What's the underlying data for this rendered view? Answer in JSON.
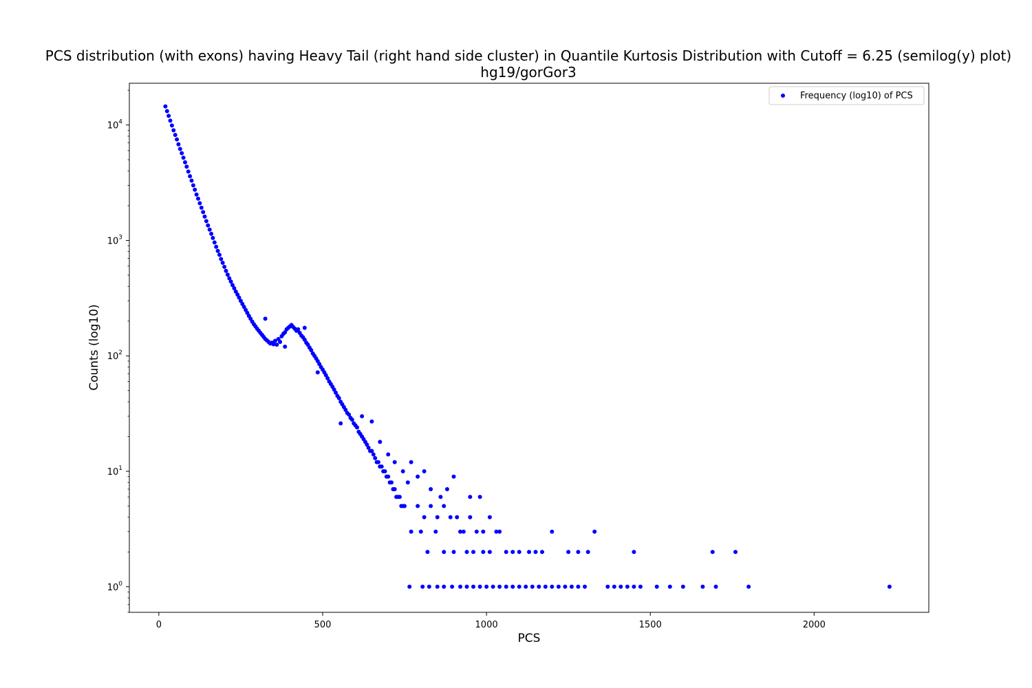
{
  "chart_data": {
    "type": "scatter",
    "title": "PCS distribution (with exons) having Heavy Tail (right hand side cluster) in Quantile Kurtosis Distribution with Cutoff = 6.25 (semilog(y) plot)",
    "subtitle": "hg19/gorGor3",
    "xlabel": "PCS",
    "ylabel": "Counts (log10)",
    "xlim": [
      -90,
      2350
    ],
    "ylim": [
      0.6,
      23000
    ],
    "yscale": "log",
    "xticks": [
      {
        "value": 0,
        "label": "0"
      },
      {
        "value": 500,
        "label": "500"
      },
      {
        "value": 1000,
        "label": "1000"
      },
      {
        "value": 1500,
        "label": "1500"
      },
      {
        "value": 2000,
        "label": "2000"
      }
    ],
    "yticks": [
      {
        "value": 1,
        "base": "10",
        "exp": "0"
      },
      {
        "value": 10,
        "base": "10",
        "exp": "1"
      },
      {
        "value": 100,
        "base": "10",
        "exp": "2"
      },
      {
        "value": 1000,
        "base": "10",
        "exp": "3"
      },
      {
        "value": 10000,
        "base": "10",
        "exp": "4"
      }
    ],
    "grid": false,
    "legend": {
      "placement": "top-right",
      "entries": [
        "Frequency (log10) of PCS"
      ]
    },
    "series": [
      {
        "name": "Frequency (log10) of PCS",
        "color": "#0000ff",
        "points": [
          [
            20,
            14500
          ],
          [
            25,
            13200
          ],
          [
            30,
            12000
          ],
          [
            35,
            10900
          ],
          [
            40,
            9900
          ],
          [
            45,
            9000
          ],
          [
            50,
            8200
          ],
          [
            55,
            7500
          ],
          [
            60,
            6800
          ],
          [
            65,
            6200
          ],
          [
            70,
            5700
          ],
          [
            75,
            5200
          ],
          [
            80,
            4750
          ],
          [
            85,
            4350
          ],
          [
            90,
            3950
          ],
          [
            95,
            3600
          ],
          [
            100,
            3300
          ],
          [
            105,
            3000
          ],
          [
            110,
            2750
          ],
          [
            115,
            2500
          ],
          [
            120,
            2300
          ],
          [
            125,
            2100
          ],
          [
            130,
            1920
          ],
          [
            135,
            1760
          ],
          [
            140,
            1610
          ],
          [
            145,
            1470
          ],
          [
            150,
            1350
          ],
          [
            155,
            1240
          ],
          [
            160,
            1140
          ],
          [
            165,
            1050
          ],
          [
            170,
            960
          ],
          [
            175,
            880
          ],
          [
            180,
            810
          ],
          [
            185,
            750
          ],
          [
            190,
            690
          ],
          [
            195,
            640
          ],
          [
            200,
            590
          ],
          [
            205,
            545
          ],
          [
            210,
            505
          ],
          [
            215,
            470
          ],
          [
            220,
            440
          ],
          [
            225,
            410
          ],
          [
            230,
            385
          ],
          [
            235,
            360
          ],
          [
            240,
            340
          ],
          [
            245,
            320
          ],
          [
            250,
            300
          ],
          [
            255,
            282
          ],
          [
            260,
            266
          ],
          [
            265,
            250
          ],
          [
            270,
            236
          ],
          [
            275,
            222
          ],
          [
            280,
            210
          ],
          [
            285,
            198
          ],
          [
            290,
            188
          ],
          [
            295,
            180
          ],
          [
            300,
            172
          ],
          [
            305,
            165
          ],
          [
            310,
            158
          ],
          [
            315,
            152
          ],
          [
            320,
            146
          ],
          [
            325,
            140
          ],
          [
            330,
            136
          ],
          [
            335,
            132
          ],
          [
            340,
            128
          ],
          [
            345,
            130
          ],
          [
            350,
            126
          ],
          [
            355,
            135
          ],
          [
            360,
            125
          ],
          [
            365,
            140
          ],
          [
            370,
            132
          ],
          [
            375,
            148
          ],
          [
            380,
            155
          ],
          [
            385,
            160
          ],
          [
            390,
            170
          ],
          [
            395,
            175
          ],
          [
            400,
            180
          ],
          [
            405,
            185
          ],
          [
            410,
            178
          ],
          [
            415,
            172
          ],
          [
            420,
            165
          ],
          [
            425,
            170
          ],
          [
            430,
            158
          ],
          [
            435,
            150
          ],
          [
            440,
            145
          ],
          [
            445,
            138
          ],
          [
            450,
            130
          ],
          [
            455,
            125
          ],
          [
            460,
            118
          ],
          [
            465,
            112
          ],
          [
            470,
            105
          ],
          [
            475,
            100
          ],
          [
            480,
            95
          ],
          [
            485,
            90
          ],
          [
            490,
            85
          ],
          [
            495,
            80
          ],
          [
            500,
            76
          ],
          [
            505,
            72
          ],
          [
            510,
            68
          ],
          [
            515,
            64
          ],
          [
            520,
            60
          ],
          [
            525,
            57
          ],
          [
            530,
            54
          ],
          [
            535,
            51
          ],
          [
            540,
            48
          ],
          [
            545,
            45
          ],
          [
            550,
            43
          ],
          [
            555,
            40
          ],
          [
            560,
            38
          ],
          [
            565,
            36
          ],
          [
            570,
            34
          ],
          [
            575,
            32
          ],
          [
            580,
            31
          ],
          [
            585,
            29
          ],
          [
            590,
            28
          ],
          [
            595,
            26
          ],
          [
            600,
            25
          ],
          [
            605,
            24
          ],
          [
            610,
            22
          ],
          [
            615,
            21
          ],
          [
            620,
            20
          ],
          [
            625,
            19
          ],
          [
            630,
            18
          ],
          [
            635,
            17
          ],
          [
            640,
            16
          ],
          [
            645,
            15
          ],
          [
            650,
            15
          ],
          [
            655,
            14
          ],
          [
            660,
            13
          ],
          [
            665,
            12
          ],
          [
            670,
            12
          ],
          [
            675,
            11
          ],
          [
            680,
            11
          ],
          [
            685,
            10
          ],
          [
            690,
            10
          ],
          [
            695,
            9
          ],
          [
            700,
            9
          ],
          [
            705,
            8
          ],
          [
            710,
            8
          ],
          [
            715,
            7
          ],
          [
            720,
            7
          ],
          [
            725,
            6
          ],
          [
            730,
            6
          ],
          [
            735,
            6
          ],
          [
            740,
            5
          ],
          [
            745,
            5
          ],
          [
            750,
            5
          ],
          [
            790,
            5
          ],
          [
            810,
            4
          ],
          [
            830,
            5
          ],
          [
            850,
            4
          ],
          [
            870,
            5
          ],
          [
            890,
            4
          ],
          [
            910,
            4
          ],
          [
            930,
            3
          ],
          [
            950,
            4
          ],
          [
            970,
            3
          ],
          [
            990,
            3
          ],
          [
            1010,
            4
          ],
          [
            1040,
            3
          ],
          [
            1060,
            2
          ],
          [
            325,
            210
          ],
          [
            385,
            120
          ],
          [
            445,
            175
          ],
          [
            485,
            72
          ],
          [
            555,
            26
          ],
          [
            620,
            30
          ],
          [
            650,
            27
          ],
          [
            675,
            18
          ],
          [
            700,
            14
          ],
          [
            720,
            12
          ],
          [
            745,
            10
          ],
          [
            760,
            8
          ],
          [
            770,
            12
          ],
          [
            790,
            9
          ],
          [
            810,
            10
          ],
          [
            830,
            7
          ],
          [
            860,
            6
          ],
          [
            880,
            7
          ],
          [
            900,
            9
          ],
          [
            950,
            6
          ],
          [
            980,
            6
          ],
          [
            770,
            3
          ],
          [
            800,
            3
          ],
          [
            820,
            2
          ],
          [
            845,
            3
          ],
          [
            870,
            2
          ],
          [
            900,
            2
          ],
          [
            920,
            3
          ],
          [
            940,
            2
          ],
          [
            960,
            2
          ],
          [
            990,
            2
          ],
          [
            1010,
            2
          ],
          [
            1030,
            3
          ],
          [
            1080,
            2
          ],
          [
            1100,
            2
          ],
          [
            1130,
            2
          ],
          [
            1150,
            2
          ],
          [
            1170,
            2
          ],
          [
            1200,
            3
          ],
          [
            1250,
            2
          ],
          [
            1280,
            2
          ],
          [
            1310,
            2
          ],
          [
            1330,
            3
          ],
          [
            1450,
            2
          ],
          [
            1690,
            2
          ],
          [
            1760,
            2
          ],
          [
            765,
            1
          ],
          [
            805,
            1
          ],
          [
            825,
            1
          ],
          [
            850,
            1
          ],
          [
            870,
            1
          ],
          [
            895,
            1
          ],
          [
            920,
            1
          ],
          [
            940,
            1
          ],
          [
            960,
            1
          ],
          [
            980,
            1
          ],
          [
            1000,
            1
          ],
          [
            1020,
            1
          ],
          [
            1040,
            1
          ],
          [
            1060,
            1
          ],
          [
            1080,
            1
          ],
          [
            1100,
            1
          ],
          [
            1120,
            1
          ],
          [
            1140,
            1
          ],
          [
            1160,
            1
          ],
          [
            1180,
            1
          ],
          [
            1200,
            1
          ],
          [
            1220,
            1
          ],
          [
            1240,
            1
          ],
          [
            1260,
            1
          ],
          [
            1280,
            1
          ],
          [
            1300,
            1
          ],
          [
            1370,
            1
          ],
          [
            1390,
            1
          ],
          [
            1410,
            1
          ],
          [
            1430,
            1
          ],
          [
            1450,
            1
          ],
          [
            1470,
            1
          ],
          [
            1520,
            1
          ],
          [
            1560,
            1
          ],
          [
            1600,
            1
          ],
          [
            1660,
            1
          ],
          [
            1700,
            1
          ],
          [
            1800,
            1
          ],
          [
            2230,
            1
          ]
        ]
      }
    ]
  }
}
